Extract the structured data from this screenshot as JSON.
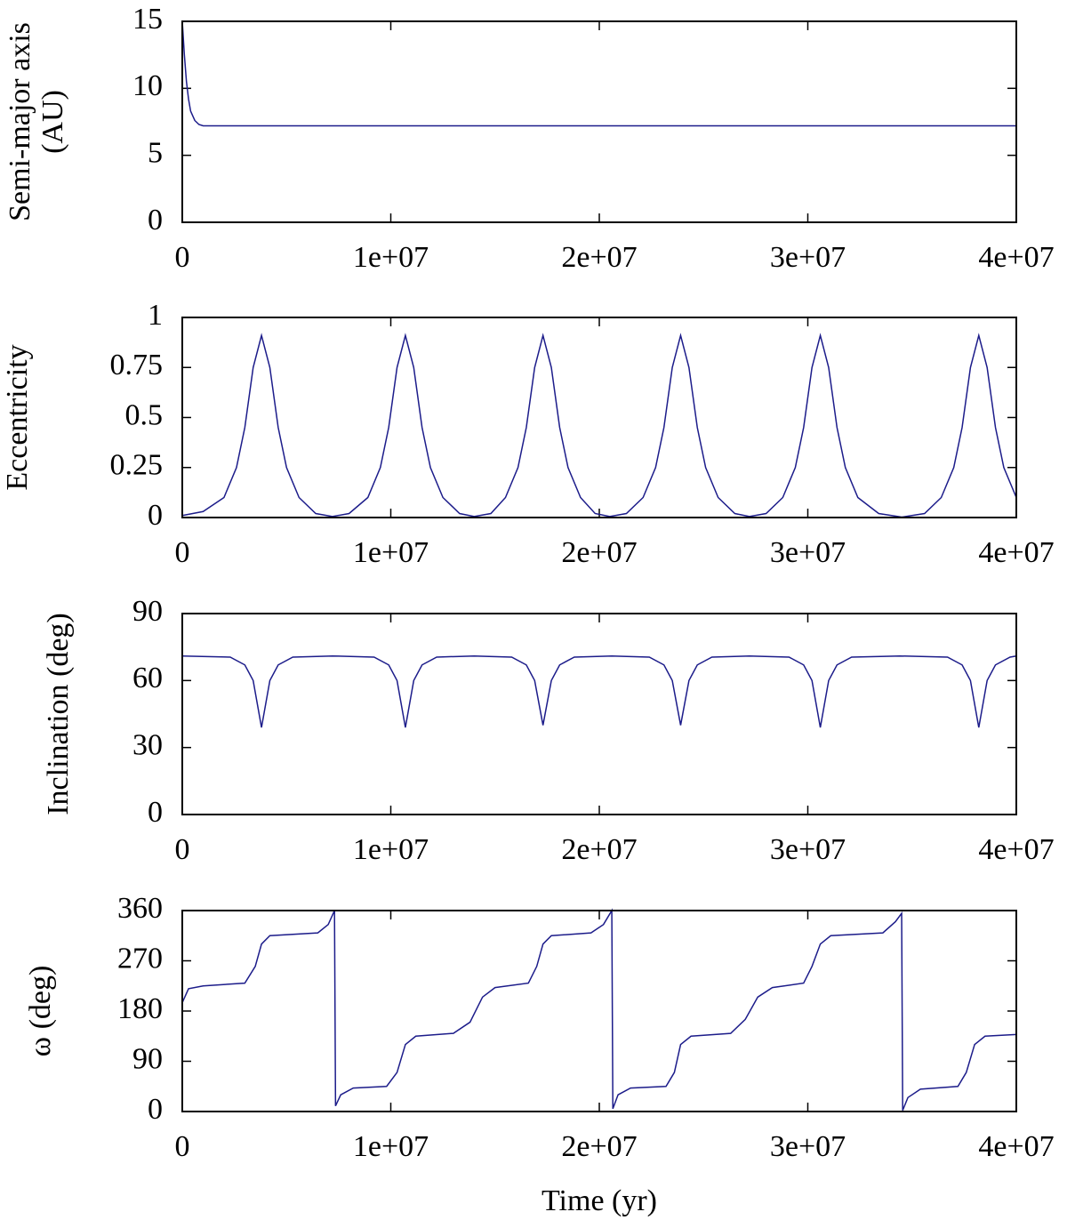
{
  "chart_data": [
    {
      "type": "line",
      "ylabel": [
        "Semi-major axis",
        "(AU)"
      ],
      "color": "#1c1c8a",
      "x": [
        0,
        100000.0,
        200000.0,
        300000.0,
        400000.0,
        600000.0,
        800000.0,
        1000000.0,
        1500000.0,
        40000000.0
      ],
      "values": [
        15,
        12.5,
        10.5,
        9.2,
        8.3,
        7.6,
        7.3,
        7.2,
        7.2,
        7.2
      ],
      "xlim": [
        0,
        40000000.0
      ],
      "xticks": [
        0,
        {
          "value": 10000000.0,
          "label": "1e+07"
        },
        {
          "value": 20000000.0,
          "label": "2e+07"
        },
        {
          "value": 30000000.0,
          "label": "3e+07"
        },
        {
          "value": 40000000.0,
          "label": "4e+07"
        }
      ],
      "ylim": [
        0,
        15
      ],
      "yticks": [
        0,
        5,
        10,
        15
      ]
    },
    {
      "type": "line",
      "ylabel": "Eccentricity",
      "color": "#1c1c8a",
      "x": [
        0,
        1000000.0,
        2000000.0,
        2600000.0,
        3000000.0,
        3400000.0,
        3800000.0,
        4200000.0,
        4600000.0,
        5000000.0,
        5600000.0,
        6400000.0,
        7200000.0,
        8000000.0,
        8900000.0,
        9500000.0,
        9900000.0,
        10300000.0,
        10700000.0,
        11100000.0,
        11500000.0,
        11900000.0,
        12500000.0,
        13300000.0,
        14000000.0,
        14800000.0,
        15500000.0,
        16100000.0,
        16500000.0,
        16900000.0,
        17300000.0,
        17700000.0,
        18100000.0,
        18500000.0,
        19100000.0,
        19800000.0,
        20500000.0,
        21300000.0,
        22100000.0,
        22700000.0,
        23100000.0,
        23500000.0,
        23900000.0,
        24300000.0,
        24700000.0,
        25100000.0,
        25700000.0,
        26500000.0,
        27200000.0,
        28000000.0,
        28800000.0,
        29400000.0,
        29800000.0,
        30200000.0,
        30600000.0,
        31000000.0,
        31400000.0,
        31800000.0,
        32400000.0,
        33400000.0,
        34500000.0,
        35600000.0,
        36400000.0,
        37000000.0,
        37400000.0,
        37800000.0,
        38200000.0,
        38600000.0,
        39000000.0,
        39400000.0,
        40000000.0
      ],
      "values": [
        0.01,
        0.03,
        0.1,
        0.25,
        0.45,
        0.75,
        0.91,
        0.75,
        0.45,
        0.25,
        0.1,
        0.02,
        0.005,
        0.02,
        0.1,
        0.25,
        0.45,
        0.75,
        0.91,
        0.75,
        0.45,
        0.25,
        0.1,
        0.02,
        0.005,
        0.02,
        0.1,
        0.25,
        0.45,
        0.75,
        0.91,
        0.75,
        0.45,
        0.25,
        0.1,
        0.02,
        0.005,
        0.02,
        0.1,
        0.25,
        0.45,
        0.75,
        0.91,
        0.75,
        0.45,
        0.25,
        0.1,
        0.02,
        0.005,
        0.02,
        0.1,
        0.25,
        0.45,
        0.75,
        0.91,
        0.75,
        0.45,
        0.25,
        0.1,
        0.02,
        0.002,
        0.02,
        0.1,
        0.25,
        0.45,
        0.75,
        0.91,
        0.75,
        0.45,
        0.25,
        0.1
      ],
      "xlim": [
        0,
        40000000.0
      ],
      "xticks": [
        0,
        {
          "value": 10000000.0,
          "label": "1e+07"
        },
        {
          "value": 20000000.0,
          "label": "2e+07"
        },
        {
          "value": 30000000.0,
          "label": "3e+07"
        },
        {
          "value": 40000000.0,
          "label": "4e+07"
        }
      ],
      "ylim": [
        0,
        1
      ],
      "yticks": [
        0,
        0.25,
        0.5,
        0.75,
        1
      ]
    },
    {
      "type": "line",
      "ylabel": "Inclination (deg)",
      "color": "#1c1c8a",
      "x": [
        0,
        2300000.0,
        3000000.0,
        3400000.0,
        3800000.0,
        4200000.0,
        4600000.0,
        5300000.0,
        7200000.0,
        9200000.0,
        9900000.0,
        10300000.0,
        10700000.0,
        11100000.0,
        11500000.0,
        12200000.0,
        14000000.0,
        15800000.0,
        16500000.0,
        16900000.0,
        17300000.0,
        17700000.0,
        18100000.0,
        18800000.0,
        20600000.0,
        22400000.0,
        23100000.0,
        23500000.0,
        23900000.0,
        24300000.0,
        24700000.0,
        25400000.0,
        27200000.0,
        29100000.0,
        29800000.0,
        30200000.0,
        30600000.0,
        31000000.0,
        31400000.0,
        32100000.0,
        34400000.0,
        36700000.0,
        37400000.0,
        37800000.0,
        38200000.0,
        38600000.0,
        39000000.0,
        39700000.0,
        40000000.0
      ],
      "values": [
        71,
        70.5,
        67,
        60,
        39,
        60,
        67,
        70.5,
        71,
        70.5,
        67,
        60,
        39,
        60,
        67,
        70.5,
        71,
        70.5,
        67,
        60,
        40,
        60,
        67,
        70.5,
        71,
        70.5,
        67,
        60,
        40,
        60,
        67,
        70.5,
        71,
        70.5,
        67,
        60,
        39,
        60,
        67,
        70.5,
        71,
        70.5,
        67,
        60,
        39,
        60,
        67,
        70.5,
        71
      ],
      "xlim": [
        0,
        40000000.0
      ],
      "xticks": [
        0,
        {
          "value": 10000000.0,
          "label": "1e+07"
        },
        {
          "value": 20000000.0,
          "label": "2e+07"
        },
        {
          "value": 30000000.0,
          "label": "3e+07"
        },
        {
          "value": 40000000.0,
          "label": "4e+07"
        }
      ],
      "ylim": [
        0,
        90
      ],
      "yticks": [
        0,
        30,
        60,
        90
      ]
    },
    {
      "type": "line",
      "ylabel": "ω (deg)",
      "xlabel": "Time (yr)",
      "color": "#1c1c8a",
      "x": [
        0,
        300000.0,
        1000000.0,
        3000000.0,
        3500000.0,
        3800000.0,
        4200000.0,
        6500000.0,
        7000000.0,
        7300000.0,
        7350000.0,
        7600000.0,
        8200000.0,
        9800000.0,
        10300000.0,
        10700000.0,
        11200000.0,
        13000000.0,
        13800000.0,
        14400000.0,
        15000000.0,
        16600000.0,
        17000000.0,
        17300000.0,
        17700000.0,
        19600000.0,
        20200000.0,
        20600000.0,
        20650000.0,
        20900000.0,
        21500000.0,
        23200000.0,
        23600000.0,
        23900000.0,
        24400000.0,
        26300000.0,
        27000000.0,
        27600000.0,
        28300000.0,
        29800000.0,
        30200000.0,
        30600000.0,
        31100000.0,
        33600000.0,
        34200000.0,
        34500000.0,
        34550000.0,
        34800000.0,
        35400000.0,
        37200000.0,
        37600000.0,
        38000000.0,
        38500000.0,
        40000000.0
      ],
      "values": [
        195,
        220,
        225,
        230,
        260,
        300,
        315,
        320,
        335,
        360,
        10,
        30,
        42,
        45,
        70,
        120,
        135,
        140,
        160,
        205,
        222,
        230,
        260,
        300,
        315,
        320,
        335,
        360,
        5,
        30,
        42,
        45,
        70,
        120,
        135,
        140,
        165,
        205,
        222,
        230,
        260,
        300,
        315,
        320,
        340,
        355,
        2,
        25,
        40,
        45,
        70,
        120,
        135,
        138
      ],
      "xlim": [
        0,
        40000000.0
      ],
      "xticks": [
        0,
        {
          "value": 10000000.0,
          "label": "1e+07"
        },
        {
          "value": 20000000.0,
          "label": "2e+07"
        },
        {
          "value": 30000000.0,
          "label": "3e+07"
        },
        {
          "value": 40000000.0,
          "label": "4e+07"
        }
      ],
      "ylim": [
        0,
        360
      ],
      "yticks": [
        0,
        90,
        180,
        270,
        360
      ]
    }
  ]
}
